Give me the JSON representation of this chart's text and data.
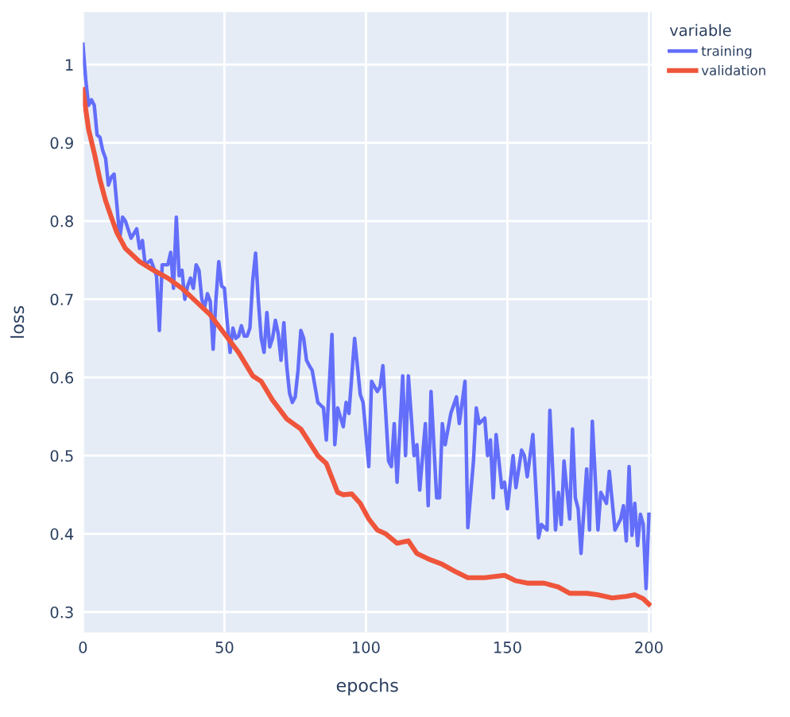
{
  "chart_data": {
    "type": "line",
    "xlabel": "epochs",
    "ylabel": "loss",
    "legend_title": "variable",
    "legend": "top right",
    "grid": true,
    "xlim": [
      0,
      201
    ],
    "xticks": [
      0,
      50,
      100,
      150,
      200
    ],
    "ylim": [
      0.274,
      1.067
    ],
    "yticks": [
      0.3,
      0.4,
      0.5,
      0.6,
      0.7,
      0.8,
      0.9,
      1
    ],
    "series": [
      {
        "name": "training",
        "color": "#636efa",
        "x": [
          0,
          1,
          2,
          3,
          4,
          5,
          6,
          7,
          8,
          9,
          10,
          11,
          12,
          13,
          14,
          15,
          17,
          19,
          20,
          21,
          22,
          24,
          26,
          27,
          28,
          30,
          31,
          32,
          33,
          34,
          35,
          36,
          37,
          38,
          39,
          40,
          41,
          42,
          43,
          44,
          45,
          46,
          47,
          48,
          49,
          50,
          51,
          52,
          53,
          54,
          55,
          56,
          57,
          58,
          59,
          60,
          61,
          62,
          63,
          64,
          65,
          66,
          67,
          68,
          69,
          70,
          71,
          72,
          73,
          74,
          75,
          76,
          77,
          78,
          79,
          80,
          81,
          83,
          85,
          86,
          88,
          89,
          90,
          92,
          93,
          94,
          96,
          98,
          99,
          101,
          102,
          104,
          105,
          106,
          108,
          109,
          110,
          111,
          113,
          114,
          115,
          117,
          118,
          119,
          121,
          122,
          123,
          125,
          126,
          127,
          128,
          130,
          132,
          133,
          135,
          136,
          138,
          139,
          140,
          142,
          143,
          144,
          145,
          146,
          148,
          149,
          150,
          152,
          153,
          155,
          156,
          157,
          159,
          161,
          162,
          164,
          165,
          167,
          168,
          169,
          170,
          172,
          173,
          174,
          175,
          176,
          178,
          179,
          180,
          182,
          183,
          185,
          186,
          188,
          190,
          191,
          192,
          193,
          194,
          195,
          196,
          197,
          198,
          199,
          200
        ],
        "values": [
          1.026,
          0.98,
          0.948,
          0.955,
          0.948,
          0.91,
          0.907,
          0.89,
          0.88,
          0.846,
          0.856,
          0.86,
          0.82,
          0.778,
          0.805,
          0.8,
          0.778,
          0.79,
          0.765,
          0.775,
          0.744,
          0.75,
          0.73,
          0.66,
          0.744,
          0.744,
          0.76,
          0.714,
          0.805,
          0.73,
          0.737,
          0.7,
          0.717,
          0.727,
          0.714,
          0.744,
          0.737,
          0.7,
          0.69,
          0.707,
          0.697,
          0.636,
          0.7,
          0.748,
          0.717,
          0.714,
          0.67,
          0.632,
          0.663,
          0.65,
          0.653,
          0.666,
          0.653,
          0.653,
          0.663,
          0.724,
          0.759,
          0.697,
          0.65,
          0.632,
          0.683,
          0.639,
          0.65,
          0.673,
          0.656,
          0.622,
          0.67,
          0.615,
          0.58,
          0.568,
          0.575,
          0.609,
          0.66,
          0.65,
          0.622,
          0.615,
          0.609,
          0.568,
          0.561,
          0.52,
          0.655,
          0.514,
          0.561,
          0.537,
          0.568,
          0.554,
          0.65,
          0.578,
          0.568,
          0.486,
          0.595,
          0.582,
          0.588,
          0.615,
          0.493,
          0.486,
          0.541,
          0.466,
          0.602,
          0.5,
          0.602,
          0.5,
          0.514,
          0.456,
          0.541,
          0.436,
          0.582,
          0.446,
          0.446,
          0.541,
          0.514,
          0.554,
          0.575,
          0.541,
          0.595,
          0.408,
          0.493,
          0.561,
          0.541,
          0.548,
          0.5,
          0.52,
          0.446,
          0.527,
          0.459,
          0.466,
          0.432,
          0.5,
          0.459,
          0.507,
          0.5,
          0.473,
          0.527,
          0.395,
          0.412,
          0.405,
          0.558,
          0.405,
          0.453,
          0.412,
          0.493,
          0.419,
          0.534,
          0.446,
          0.432,
          0.375,
          0.483,
          0.405,
          0.544,
          0.405,
          0.453,
          0.439,
          0.48,
          0.405,
          0.419,
          0.436,
          0.391,
          0.486,
          0.398,
          0.439,
          0.385,
          0.425,
          0.412,
          0.33,
          0.425
        ]
      },
      {
        "name": "validation",
        "color": "#ef553b",
        "x": [
          0,
          2,
          4,
          6,
          8,
          10,
          12,
          15,
          20,
          25,
          30,
          35,
          40,
          45,
          50,
          55,
          60,
          63,
          67,
          72,
          77,
          80,
          83,
          86,
          90,
          92,
          95,
          98,
          101,
          104,
          107,
          111,
          115,
          118,
          122,
          127,
          132,
          136,
          142,
          149,
          153,
          157,
          163,
          168,
          172,
          178,
          182,
          187,
          192,
          195,
          198,
          200
        ],
        "values": [
          0.968,
          0.917,
          0.887,
          0.853,
          0.826,
          0.805,
          0.785,
          0.765,
          0.748,
          0.737,
          0.727,
          0.714,
          0.697,
          0.68,
          0.656,
          0.632,
          0.602,
          0.595,
          0.571,
          0.547,
          0.534,
          0.517,
          0.5,
          0.49,
          0.453,
          0.45,
          0.451,
          0.439,
          0.419,
          0.405,
          0.4,
          0.388,
          0.391,
          0.375,
          0.368,
          0.361,
          0.351,
          0.344,
          0.344,
          0.347,
          0.34,
          0.337,
          0.337,
          0.332,
          0.324,
          0.324,
          0.322,
          0.318,
          0.32,
          0.322,
          0.317,
          0.31
        ]
      }
    ]
  }
}
